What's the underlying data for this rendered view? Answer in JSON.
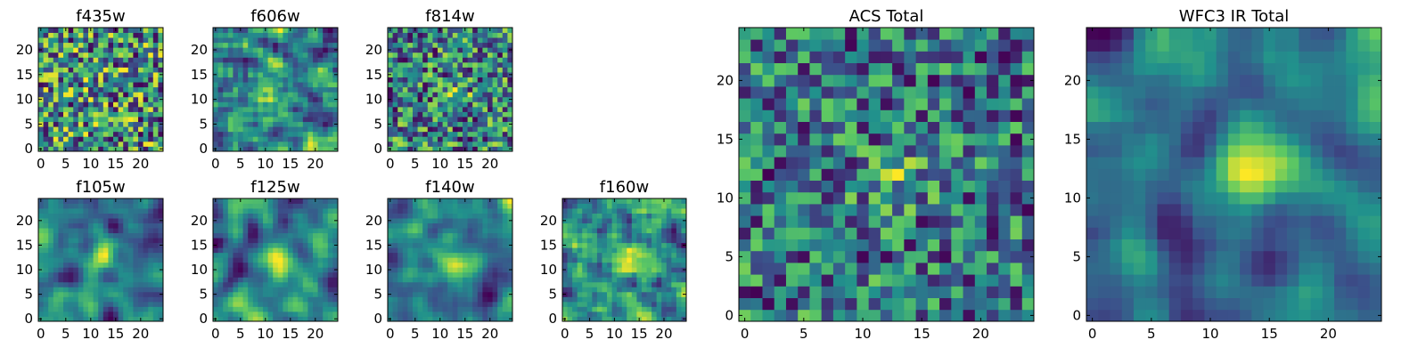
{
  "figure": {
    "colormap": "viridis",
    "colors": {
      "low": "#440154",
      "mid": "#21918c",
      "high": "#fde725"
    }
  },
  "chart_data": [
    {
      "type": "heatmap",
      "title": "f435w",
      "grid_size": 25,
      "xlim": [
        0,
        24
      ],
      "ylim": [
        0,
        24
      ],
      "xticks": [
        0,
        5,
        10,
        15,
        20
      ],
      "yticks": [
        0,
        5,
        10,
        15,
        20
      ],
      "source_center": [
        12,
        12
      ],
      "grid": false
    },
    {
      "type": "heatmap",
      "title": "f606w",
      "grid_size": 25,
      "xlim": [
        0,
        24
      ],
      "ylim": [
        0,
        24
      ],
      "xticks": [
        0,
        5,
        10,
        15,
        20
      ],
      "yticks": [
        0,
        5,
        10,
        15,
        20
      ],
      "source_center": [
        12,
        12
      ],
      "grid": false
    },
    {
      "type": "heatmap",
      "title": "f814w",
      "grid_size": 25,
      "xlim": [
        0,
        24
      ],
      "ylim": [
        0,
        24
      ],
      "xticks": [
        0,
        5,
        10,
        15,
        20
      ],
      "yticks": [
        0,
        5,
        10,
        15,
        20
      ],
      "source_center": [
        13,
        11
      ],
      "grid": false
    },
    {
      "type": "heatmap",
      "title": "f105w",
      "grid_size": 25,
      "xlim": [
        0,
        24
      ],
      "ylim": [
        0,
        24
      ],
      "xticks": [
        0,
        5,
        10,
        15,
        20
      ],
      "yticks": [
        0,
        5,
        10,
        15,
        20
      ],
      "source_center": [
        12,
        12
      ],
      "grid": false
    },
    {
      "type": "heatmap",
      "title": "f125w",
      "grid_size": 25,
      "xlim": [
        0,
        24
      ],
      "ylim": [
        0,
        24
      ],
      "xticks": [
        0,
        5,
        10,
        15,
        20
      ],
      "yticks": [
        0,
        5,
        10,
        15,
        20
      ],
      "source_center": [
        12,
        13
      ],
      "grid": false
    },
    {
      "type": "heatmap",
      "title": "f140w",
      "grid_size": 25,
      "xlim": [
        0,
        24
      ],
      "ylim": [
        0,
        24
      ],
      "xticks": [
        0,
        5,
        10,
        15,
        20
      ],
      "yticks": [
        0,
        5,
        10,
        15,
        20
      ],
      "source_center": [
        13,
        12
      ],
      "grid": false
    },
    {
      "type": "heatmap",
      "title": "f160w",
      "grid_size": 25,
      "xlim": [
        0,
        24
      ],
      "ylim": [
        0,
        24
      ],
      "xticks": [
        0,
        5,
        10,
        15,
        20
      ],
      "yticks": [
        0,
        5,
        10,
        15,
        20
      ],
      "source_center": [
        13,
        12
      ],
      "grid": false
    },
    {
      "type": "heatmap",
      "title": "ACS Total",
      "grid_size": 25,
      "xlim": [
        0,
        24
      ],
      "ylim": [
        0,
        24
      ],
      "xticks": [
        0,
        5,
        10,
        15,
        20
      ],
      "yticks": [
        0,
        5,
        10,
        15,
        20
      ],
      "source_center": [
        13,
        12
      ],
      "grid": false
    },
    {
      "type": "heatmap",
      "title": "WFC3 IR Total",
      "grid_size": 25,
      "xlim": [
        0,
        24
      ],
      "ylim": [
        0,
        24
      ],
      "xticks": [
        0,
        5,
        10,
        15,
        20
      ],
      "yticks": [
        0,
        5,
        10,
        15,
        20
      ],
      "source_center": [
        13,
        12
      ],
      "grid": false
    }
  ]
}
